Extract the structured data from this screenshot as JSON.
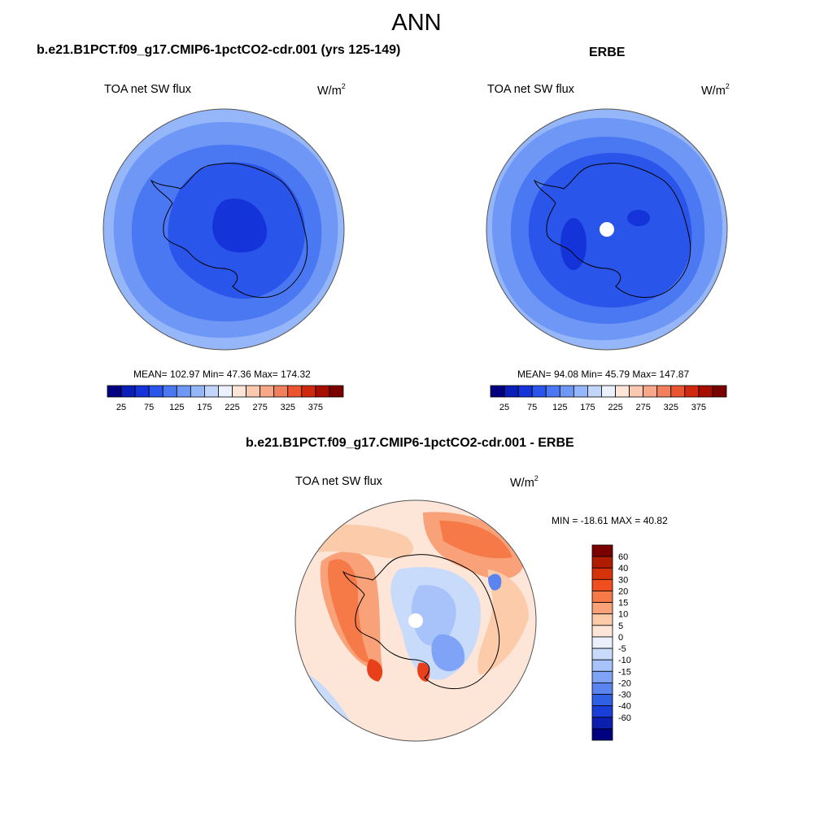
{
  "title": "ANN",
  "panels": [
    {
      "name": "model",
      "title": "b.e21.B1PCT.f09_g17.CMIP6-1pctCO2-cdr.001 (yrs 125-149)",
      "field_label": "TOA net SW flux",
      "units_base": "W/m",
      "units_exp": "2",
      "stats_text": "MEAN= 102.97  Min=  47.36  Max= 174.32",
      "mean": 102.97,
      "min": 47.36,
      "max": 174.32
    },
    {
      "name": "obs",
      "title": "ERBE",
      "field_label": "TOA net SW flux",
      "units_base": "W/m",
      "units_exp": "2",
      "stats_text": "MEAN=  94.08  Min=  45.79  Max= 147.87",
      "mean": 94.08,
      "min": 45.79,
      "max": 147.87
    },
    {
      "name": "diff",
      "title": "b.e21.B1PCT.f09_g17.CMIP6-1pctCO2-cdr.001 - ERBE",
      "field_label": "TOA net SW flux",
      "units_base": "W/m",
      "units_exp": "2",
      "stats_text": "MIN = -18.61 MAX =  40.82",
      "min": -18.61,
      "max": 40.82
    }
  ],
  "abs_colorbar": {
    "colors": [
      "#000080",
      "#0a1fb8",
      "#1433d8",
      "#2a55ea",
      "#4a78f2",
      "#6f98f6",
      "#95b6f9",
      "#c3d5fb",
      "#ebf1fe",
      "#fde6d8",
      "#fbc9b0",
      "#f8a888",
      "#f3805c",
      "#ea5530",
      "#cf2a10",
      "#a60f00",
      "#7a0000"
    ],
    "tick_labels": [
      "25",
      "75",
      "125",
      "175",
      "225",
      "275",
      "325",
      "375"
    ]
  },
  "diff_colorbar": {
    "colors": [
      "#7a0000",
      "#b01c00",
      "#d6320a",
      "#f04e1e",
      "#f57a48",
      "#f9a27a",
      "#fccba9",
      "#fde6d8",
      "#eaf1fd",
      "#c9dbfb",
      "#a8c2fa",
      "#7fa3f6",
      "#5a84f0",
      "#3060e6",
      "#1a3fd8",
      "#0c20b0",
      "#000080"
    ],
    "tick_labels": [
      "60",
      "40",
      "30",
      "20",
      "15",
      "10",
      "5",
      "0",
      "-5",
      "-10",
      "-15",
      "-20",
      "-30",
      "-40",
      "-60"
    ]
  },
  "colors": {
    "land_outline": "#000000",
    "circle_outline": "#555555",
    "model_outer": "#8fb1f8",
    "model_mid": "#5f8bf3",
    "model_inner": "#3866ea",
    "model_land": "#1f46dd",
    "model_core": "#1030c8",
    "obs_outer": "#8fb1f8",
    "obs_mid": "#5f8bf3",
    "obs_inner": "#3866ea",
    "obs_land": "#1e40d8",
    "obs_core": "#1535cc",
    "diff_base": "#fde6d8",
    "diff_light": "#fccba9",
    "diff_mid": "#f9a27a",
    "diff_strong": "#f57a48",
    "diff_hot": "#e8401a",
    "diff_blue_light": "#c9dbfb",
    "diff_blue_mid": "#a8c2fa",
    "diff_blue": "#7fa3f6"
  }
}
